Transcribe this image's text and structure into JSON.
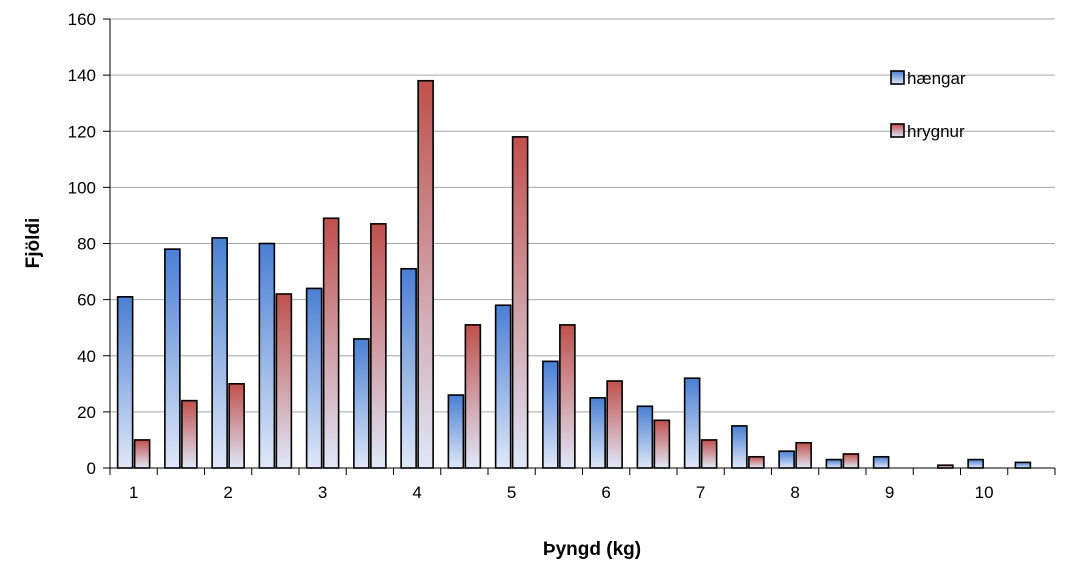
{
  "chart_data": {
    "type": "bar",
    "xlabel": "Þyngd (kg)",
    "ylabel": "Fjöldi",
    "ylim": [
      0,
      160
    ],
    "yticks": [
      0,
      20,
      40,
      60,
      80,
      100,
      120,
      140,
      160
    ],
    "x_tick_labels": [
      "1",
      "2",
      "3",
      "4",
      "5",
      "6",
      "7",
      "8",
      "9",
      "10"
    ],
    "grid": "horizontal",
    "legend_position": "top-right",
    "series": [
      {
        "name": "hængar",
        "color": "#4a7fcf",
        "values": [
          61,
          78,
          82,
          80,
          64,
          46,
          71,
          26,
          58,
          38,
          25,
          22,
          32,
          15,
          6,
          3,
          4,
          0,
          3,
          2
        ]
      },
      {
        "name": "hrygnur",
        "color": "#c0504d",
        "values": [
          10,
          24,
          30,
          62,
          89,
          87,
          138,
          51,
          118,
          51,
          31,
          17,
          10,
          4,
          9,
          5,
          0,
          1,
          0,
          0
        ]
      }
    ]
  }
}
